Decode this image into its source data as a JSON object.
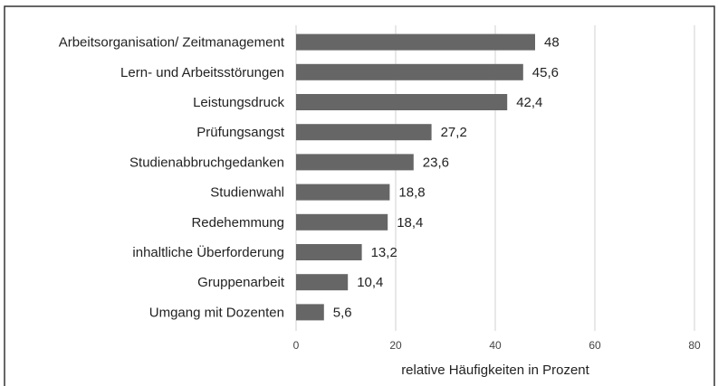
{
  "chart_data": {
    "type": "bar",
    "orientation": "horizontal",
    "categories": [
      "Arbeitsorganisation/ Zeitmanagement",
      "Lern- und Arbeitsstörungen",
      "Leistungsdruck",
      "Prüfungsangst",
      "Studienabbruchgedanken",
      "Studienwahl",
      "Redehemmung",
      "inhaltliche Überforderung",
      "Gruppenarbeit",
      "Umgang mit Dozenten"
    ],
    "values": [
      48,
      45.6,
      42.4,
      27.2,
      23.6,
      18.8,
      18.4,
      13.2,
      10.4,
      5.6
    ],
    "value_labels": [
      "48",
      "45,6",
      "42,4",
      "27,2",
      "23,6",
      "18,8",
      "18,4",
      "13,2",
      "10,4",
      "5,6"
    ],
    "color": "#666666",
    "xlim": [
      0,
      80
    ],
    "xticks": [
      0,
      20,
      40,
      60,
      80
    ],
    "grid": true,
    "xlabel": "relative Häufigkeiten in Prozent"
  }
}
